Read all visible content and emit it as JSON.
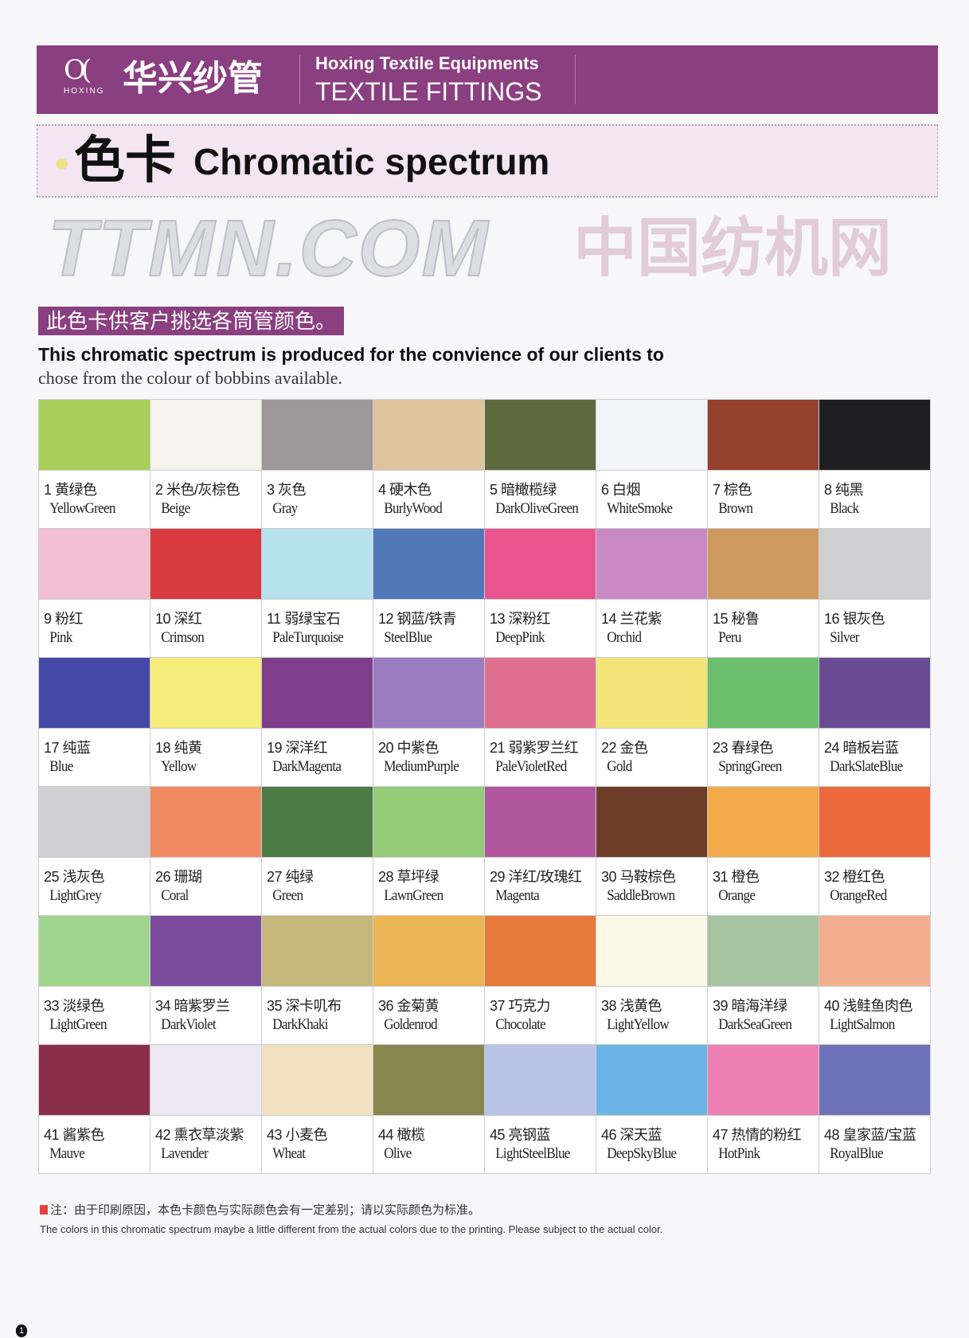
{
  "header": {
    "logo_text": "HOXING",
    "brand_cn": "华兴纱管",
    "brand_en_line1": "Hoxing Textile Equipments",
    "brand_en_line2": "TEXTILE FITTINGS",
    "bg_color": "#8a3f80"
  },
  "title": {
    "cn": "色卡",
    "en": "Chromatic spectrum"
  },
  "intro": {
    "cn": "此色卡供客户挑选各筒管颜色。",
    "en_line1": "This chromatic spectrum is produced for the convience of our clients to",
    "en_line2": "chose from the colour of  bobbins available."
  },
  "colors": [
    {
      "num": "1",
      "cn": "黄绿色",
      "en": "YellowGreen",
      "hex": "#a8cf5a"
    },
    {
      "num": "2",
      "cn": "米色/灰棕色",
      "en": "Beige",
      "hex": "#f4f3ec"
    },
    {
      "num": "3",
      "cn": "灰色",
      "en": "Gray",
      "hex": "#9c9899"
    },
    {
      "num": "4",
      "cn": "硬木色",
      "en": "BurlyWood",
      "hex": "#ddc39e"
    },
    {
      "num": "5",
      "cn": "暗橄榄绿",
      "en": "DarkOliveGreen",
      "hex": "#5e6a3e"
    },
    {
      "num": "6",
      "cn": "白烟",
      "en": "WhiteSmoke",
      "hex": "#f3f4f7"
    },
    {
      "num": "7",
      "cn": "棕色",
      "en": "Brown",
      "hex": "#94412f"
    },
    {
      "num": "8",
      "cn": "纯黑",
      "en": "Black",
      "hex": "#1e1e20"
    },
    {
      "num": "9",
      "cn": "粉红",
      "en": "Pink",
      "hex": "#f2bfd3"
    },
    {
      "num": "10",
      "cn": "深红",
      "en": "Crimson",
      "hex": "#d63a3e"
    },
    {
      "num": "11",
      "cn": "弱绿宝石",
      "en": "PaleTurquoise",
      "hex": "#b7e1ec"
    },
    {
      "num": "12",
      "cn": "钢蓝/铁青",
      "en": "SteelBlue",
      "hex": "#5077b8"
    },
    {
      "num": "13",
      "cn": "深粉红",
      "en": "DeepPink",
      "hex": "#e95390"
    },
    {
      "num": "14",
      "cn": "兰花紫",
      "en": "Orchid",
      "hex": "#c889c4"
    },
    {
      "num": "15",
      "cn": "秘鲁",
      "en": "Peru",
      "hex": "#cf9a5e"
    },
    {
      "num": "16",
      "cn": "银灰色",
      "en": "Silver",
      "hex": "#cfcfd1"
    },
    {
      "num": "17",
      "cn": "纯蓝",
      "en": "Blue",
      "hex": "#4549a6"
    },
    {
      "num": "18",
      "cn": "纯黄",
      "en": "Yellow",
      "hex": "#f5ec7a"
    },
    {
      "num": "19",
      "cn": "深洋红",
      "en": "DarkMagenta",
      "hex": "#7e3e8b"
    },
    {
      "num": "20",
      "cn": "中紫色",
      "en": "MediumPurple",
      "hex": "#9c7cc0"
    },
    {
      "num": "21",
      "cn": "弱紫罗兰红",
      "en": "PaleVioletRed",
      "hex": "#e07090"
    },
    {
      "num": "22",
      "cn": "金色",
      "en": "Gold",
      "hex": "#f4e57a"
    },
    {
      "num": "23",
      "cn": "春绿色",
      "en": "SpringGreen",
      "hex": "#6cbf6c"
    },
    {
      "num": "24",
      "cn": "暗板岩蓝",
      "en": "DarkSlateBlue",
      "hex": "#6a4b93"
    },
    {
      "num": "25",
      "cn": "浅灰色",
      "en": "LightGrey",
      "hex": "#d0cfd4"
    },
    {
      "num": "26",
      "cn": "珊瑚",
      "en": "Coral",
      "hex": "#f08a62"
    },
    {
      "num": "27",
      "cn": "纯绿",
      "en": "Green",
      "hex": "#4b7a45"
    },
    {
      "num": "28",
      "cn": "草坪绿",
      "en": "LawnGreen",
      "hex": "#94cc79"
    },
    {
      "num": "29",
      "cn": "洋红/玫瑰红",
      "en": "Magenta",
      "hex": "#b0579e"
    },
    {
      "num": "30",
      "cn": "马鞍棕色",
      "en": "SaddleBrown",
      "hex": "#6d3c28"
    },
    {
      "num": "31",
      "cn": "橙色",
      "en": "Orange",
      "hex": "#f2aa4a"
    },
    {
      "num": "32",
      "cn": "橙红色",
      "en": "OrangeRed",
      "hex": "#ed6a3d"
    },
    {
      "num": "33",
      "cn": "淡绿色",
      "en": "LightGreen",
      "hex": "#9fd48e"
    },
    {
      "num": "34",
      "cn": "暗紫罗兰",
      "en": "DarkViolet",
      "hex": "#7a4b9d"
    },
    {
      "num": "35",
      "cn": "深卡叽布",
      "en": "DarkKhaki",
      "hex": "#c5b77c"
    },
    {
      "num": "36",
      "cn": "金菊黄",
      "en": "Goldenrod",
      "hex": "#eab552"
    },
    {
      "num": "37",
      "cn": "巧克力",
      "en": "Chocolate",
      "hex": "#e57a3b"
    },
    {
      "num": "38",
      "cn": "浅黄色",
      "en": "LightYellow",
      "hex": "#fbf8e6"
    },
    {
      "num": "39",
      "cn": "暗海洋绿",
      "en": "DarkSeaGreen",
      "hex": "#a7c3a0"
    },
    {
      "num": "40",
      "cn": "浅鲑鱼肉色",
      "en": "LightSalmon",
      "hex": "#f3ad8f"
    },
    {
      "num": "41",
      "cn": "酱紫色",
      "en": "Mauve",
      "hex": "#8b2e4c"
    },
    {
      "num": "42",
      "cn": "熏衣草淡紫",
      "en": "Lavender",
      "hex": "#ebe8f3"
    },
    {
      "num": "43",
      "cn": "小麦色",
      "en": "Wheat",
      "hex": "#f2e1c1"
    },
    {
      "num": "44",
      "cn": "橄榄",
      "en": "Olive",
      "hex": "#87874e"
    },
    {
      "num": "45",
      "cn": "亮钢蓝",
      "en": "LightSteelBlue",
      "hex": "#b8c4e6"
    },
    {
      "num": "46",
      "cn": "深天蓝",
      "en": "DeepSkyBlue",
      "hex": "#6ab4e8"
    },
    {
      "num": "47",
      "cn": "热情的粉红",
      "en": "HotPink",
      "hex": "#ee7fb4"
    },
    {
      "num": "48",
      "cn": "皇家蓝/宝蓝",
      "en": "RoyalBlue",
      "hex": "#6c73b8"
    }
  ],
  "note": {
    "cn": "注：由于印刷原因，本色卡颜色与实际颜色会有一定差别；请以实际颜色为标准。",
    "en": "The colors in this chromatic spectrum maybe a little different from the actual colors due to the printing. Please subject to the actual color."
  },
  "page_number": "1",
  "watermark": {
    "line1": "TTMN.COM",
    "line2": "中国纺机网"
  }
}
